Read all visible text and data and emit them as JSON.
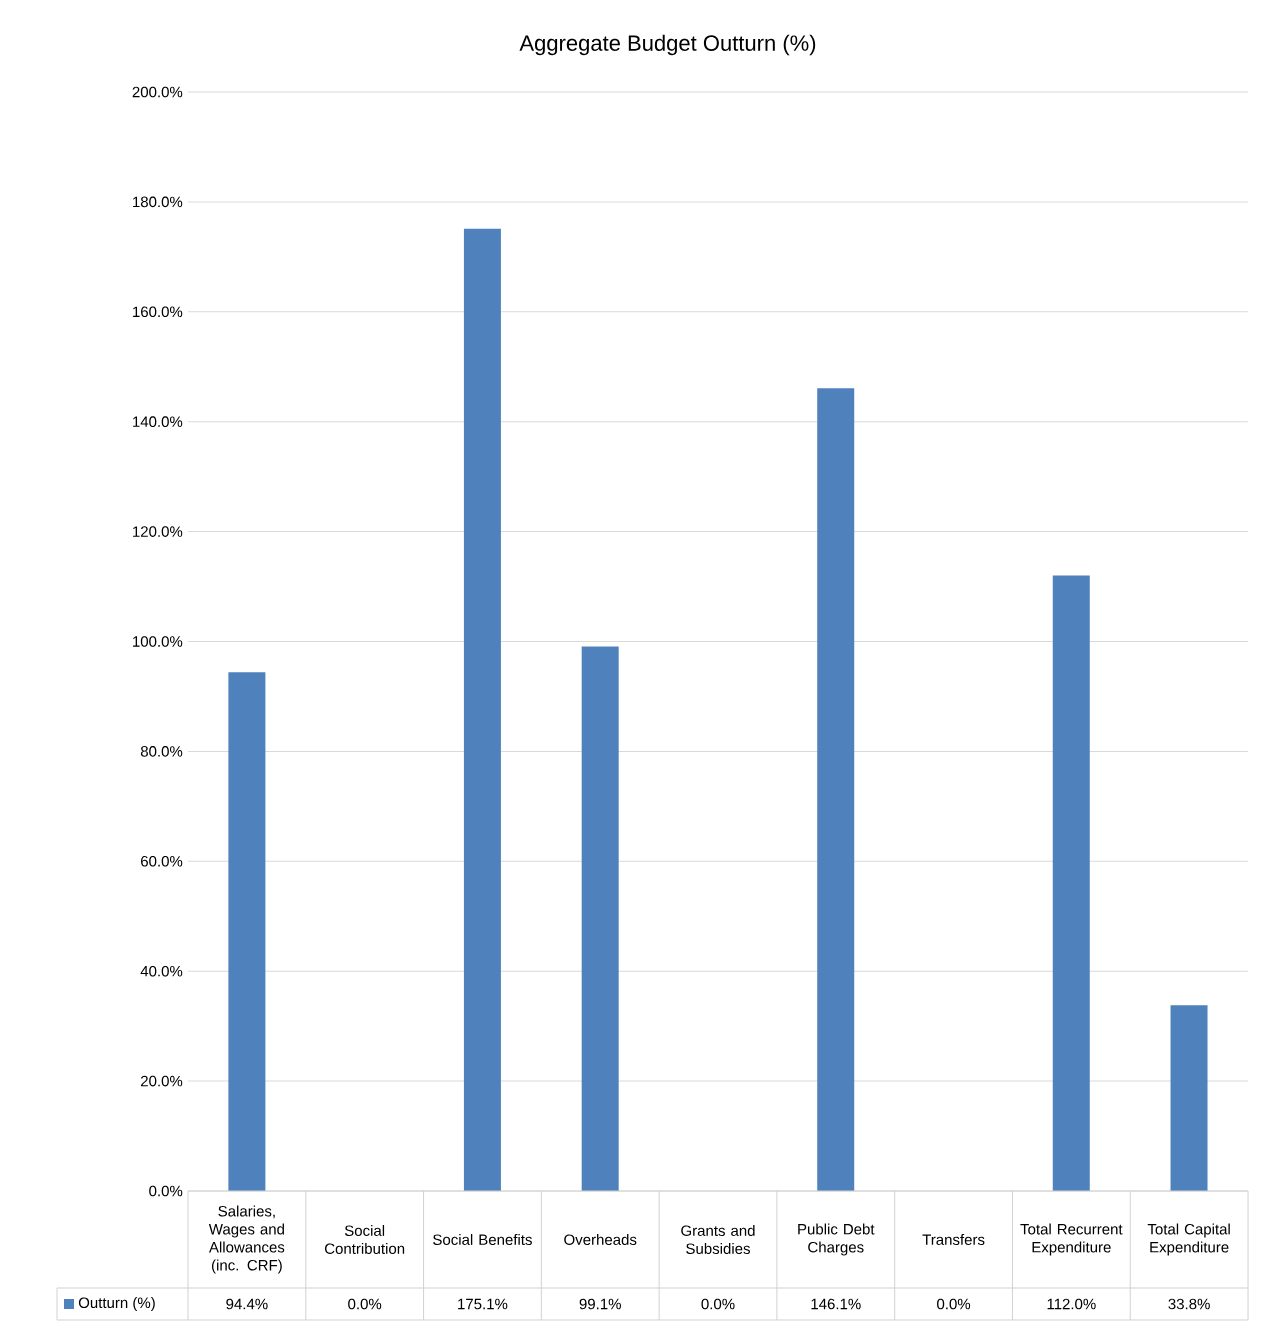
{
  "chart_data": {
    "type": "bar",
    "title": "Aggregate Budget Outturn (%)",
    "categories": [
      "Salaries, Wages and Allowances (inc. CRF)",
      "Social Contribution",
      "Social Benefits",
      "Overheads",
      "Grants and Subsidies",
      "Public Debt Charges",
      "Transfers",
      "Total Recurrent Expenditure",
      "Total Capital Expenditure"
    ],
    "series": [
      {
        "name": "Outturn (%)",
        "color": "#4f81bd",
        "values": [
          94.4,
          0.0,
          175.1,
          99.1,
          0.0,
          146.1,
          0.0,
          112.0,
          33.8
        ],
        "value_labels": [
          "94.4%",
          "0.0%",
          "175.1%",
          "99.1%",
          "0.0%",
          "146.1%",
          "0.0%",
          "112.0%",
          "33.8%"
        ]
      }
    ],
    "ylim": [
      0,
      200
    ],
    "yticks": [
      {
        "value": 0,
        "label": "0.0%"
      },
      {
        "value": 20,
        "label": "20.0%"
      },
      {
        "value": 40,
        "label": "40.0%"
      },
      {
        "value": 60,
        "label": "60.0%"
      },
      {
        "value": 80,
        "label": "80.0%"
      },
      {
        "value": 100,
        "label": "100.0%"
      },
      {
        "value": 120,
        "label": "120.0%"
      },
      {
        "value": 140,
        "label": "140.0%"
      },
      {
        "value": 160,
        "label": "160.0%"
      },
      {
        "value": 180,
        "label": "180.0%"
      },
      {
        "value": 200,
        "label": "200.0%"
      }
    ],
    "grid": "y",
    "legend": "bottom left"
  }
}
